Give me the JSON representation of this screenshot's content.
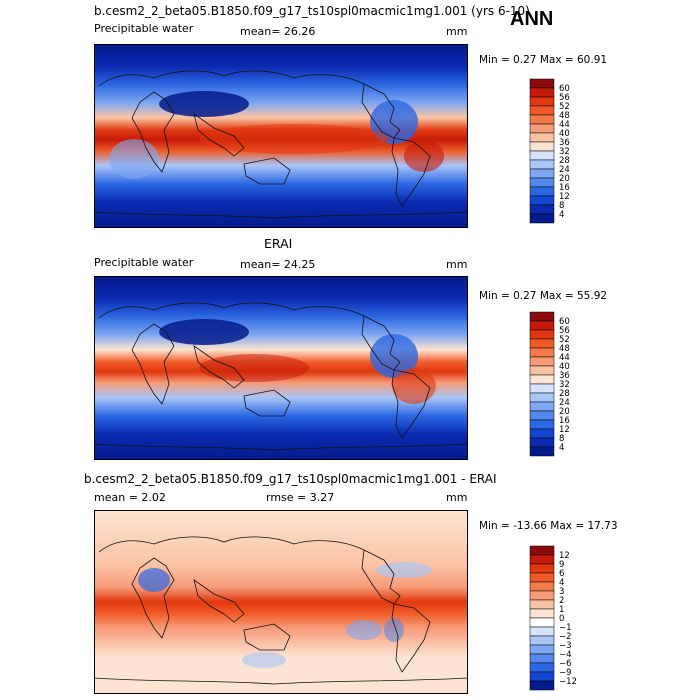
{
  "season": "ANN",
  "panels": [
    {
      "title": "b.cesm2_2_beta05.B1850.f09_g17_ts10spl0macmic1mg1.001 (yrs 6-10)",
      "left_label": "Precipitable water",
      "stat_text": "mean=   26.26",
      "units": "mm",
      "minmax_text": "Min =    0.27 Max =   60.91"
    },
    {
      "title": "ERAI",
      "left_label": "Precipitable water",
      "stat_text": "mean=   24.25",
      "units": "mm",
      "minmax_text": "Min =    0.27 Max =   55.92"
    },
    {
      "title": "b.cesm2_2_beta05.B1850.f09_g17_ts10spl0macmic1mg1.001 - ERAI",
      "left_label": "mean =     2.02",
      "stat_text": "rmse =    3.27",
      "units": "mm",
      "minmax_text": "Min = -13.66 Max =   17.73"
    }
  ],
  "chart_data": [
    {
      "type": "heatmap",
      "field": "model",
      "colorbar_levels": [
        "60",
        "56",
        "52",
        "48",
        "44",
        "40",
        "36",
        "32",
        "28",
        "24",
        "20",
        "16",
        "12",
        "8",
        "4"
      ],
      "colorbar_colors": [
        "#8b0b0b",
        "#c41a0a",
        "#e0380f",
        "#f05a28",
        "#f47a4c",
        "#f79a77",
        "#fbc3a4",
        "#fde4d2",
        "#d5e4fb",
        "#a9c6f7",
        "#7ea7f1",
        "#5288eb",
        "#2c68e3",
        "#1447cf",
        "#0a2ab0",
        "#031b8c"
      ]
    },
    {
      "type": "heatmap",
      "field": "erai",
      "colorbar_levels": [
        "60",
        "56",
        "52",
        "48",
        "44",
        "40",
        "36",
        "32",
        "28",
        "24",
        "20",
        "16",
        "12",
        "8",
        "4"
      ],
      "colorbar_colors": [
        "#8b0b0b",
        "#c41a0a",
        "#e0380f",
        "#f05a28",
        "#f47a4c",
        "#f79a77",
        "#fbc3a4",
        "#fde4d2",
        "#d5e4fb",
        "#a9c6f7",
        "#7ea7f1",
        "#5288eb",
        "#2c68e3",
        "#1447cf",
        "#0a2ab0",
        "#031b8c"
      ]
    },
    {
      "type": "heatmap",
      "field": "difference",
      "colorbar_levels": [
        "12",
        "9",
        "6",
        "4",
        "3",
        "2",
        "1",
        "0",
        "−1",
        "−2",
        "−3",
        "−4",
        "−6",
        "−9",
        "−12"
      ],
      "colorbar_colors": [
        "#8b0b0b",
        "#c41a0a",
        "#e0380f",
        "#f05a28",
        "#f47a4c",
        "#f79a77",
        "#fbc3a4",
        "#fde4d2",
        "#ffffff",
        "#d5e4fb",
        "#a9c6f7",
        "#7ea7f1",
        "#5288eb",
        "#2c68e3",
        "#1447cf",
        "#031b8c"
      ]
    }
  ]
}
